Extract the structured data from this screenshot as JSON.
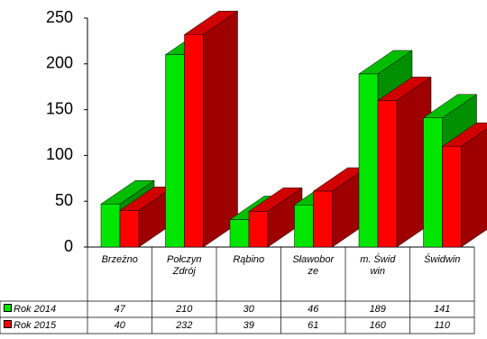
{
  "chart_data": {
    "type": "bar3d",
    "categories": [
      "Brzeżno",
      "Połczyn Zdrój",
      "Rąbino",
      "Sławoborze",
      "m. Świdwin",
      "Świdwin"
    ],
    "series": [
      {
        "name": "Rok 2014",
        "color": "#00e600",
        "values": [
          47,
          210,
          30,
          46,
          189,
          141
        ]
      },
      {
        "name": "Rok 2015",
        "color": "#ff0000",
        "values": [
          40,
          232,
          39,
          61,
          160,
          110
        ]
      }
    ],
    "ylim": [
      0,
      250
    ],
    "yticks": [
      0,
      50,
      100,
      150,
      200,
      250
    ],
    "grid": false
  }
}
